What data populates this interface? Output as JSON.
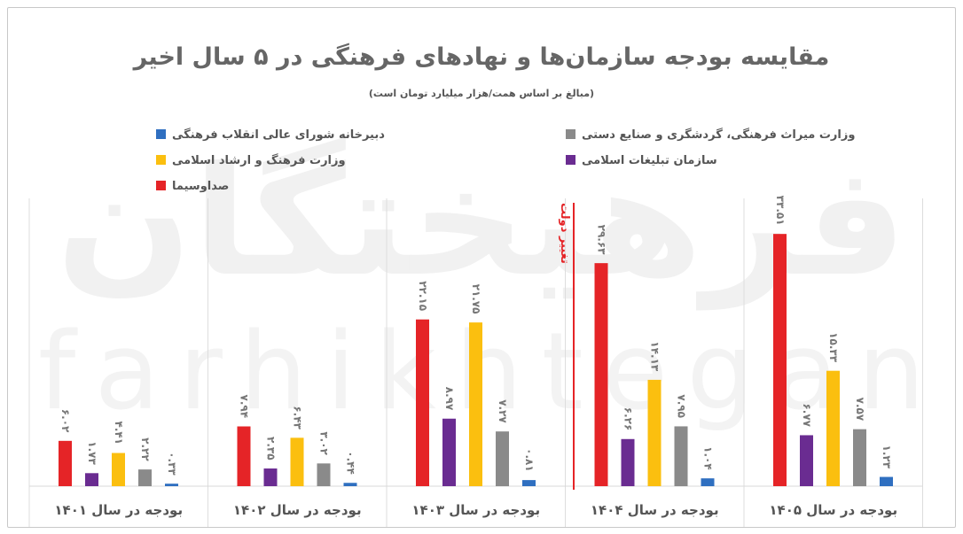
{
  "chart_data": {
    "type": "bar",
    "title": "مقایسه بودجه سازمان‌ها و نهادهای فرهنگی در ۵ سال اخیر",
    "subtitle": "(مبالغ بر اساس همت/هزار میلیارد تومان است)",
    "categories": [
      "بودجه در سال ۱۴۰۱",
      "بودجه در سال ۱۴۰۲",
      "بودجه در سال ۱۴۰۳",
      "بودجه در سال ۱۴۰۴",
      "بودجه در سال ۱۴۰۵"
    ],
    "value_labels": [
      [
        "۶.۰۲",
        "۱.۷۳",
        "۴.۴۱",
        "۲.۲۲",
        "۰.۳۳"
      ],
      [
        "۷.۹۴",
        "۲.۳۵",
        "۶.۴۳",
        "۳.۰۲",
        "۰.۴۴"
      ],
      [
        "۲۲.۱۵",
        "۸.۹۷",
        "۲۱.۷۵",
        "۷.۲۷",
        "۰.۸۱"
      ],
      [
        "۲۹.۶۳",
        "۶.۲۶",
        "۱۴.۱۳",
        "۷.۹۵",
        "۱.۰۴"
      ],
      [
        "۳۳.۵۱",
        "۶.۷۷",
        "۱۵.۳۳",
        "۷.۵۷",
        "۱.۲۳"
      ]
    ],
    "series": [
      {
        "name": "صداوسیما",
        "color": "#e52427",
        "values": [
          6.02,
          7.94,
          22.15,
          29.63,
          33.51
        ]
      },
      {
        "name": "سازمان تبلیغات اسلامی",
        "color": "#6a2c91",
        "values": [
          1.73,
          2.35,
          8.97,
          6.26,
          6.77
        ]
      },
      {
        "name": "وزارت فرهنگ و ارشاد اسلامی",
        "color": "#fbbf0f",
        "values": [
          4.41,
          6.43,
          21.75,
          14.13,
          15.33
        ]
      },
      {
        "name": "وزارت میراث فرهنگی، گردشگری و صنایع دستی",
        "color": "#8a8a8a",
        "values": [
          2.22,
          3.02,
          7.27,
          7.95,
          7.57
        ]
      },
      {
        "name": "دبیرخانه شورای عالی انقلاب فرهنگی",
        "color": "#2f6fc0",
        "values": [
          0.33,
          0.44,
          0.81,
          1.04,
          1.23
        ]
      }
    ],
    "legend_order": [
      4,
      3,
      2,
      1,
      0
    ],
    "legend_placement": "top",
    "annotation": "تغییر دولت",
    "watermark": [
      "فرهیختگان",
      "farhikhtegan"
    ],
    "ylim": [
      0,
      36
    ],
    "grid": false
  }
}
